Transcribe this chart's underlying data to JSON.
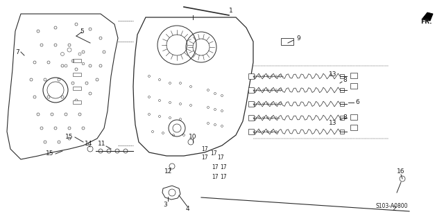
{
  "title": "",
  "background_color": "#ffffff",
  "diagram_code": "S103-A0800",
  "fr_label": "FR.",
  "part_numbers": [
    1,
    2,
    3,
    4,
    5,
    6,
    7,
    8,
    9,
    10,
    11,
    12,
    13,
    14,
    15,
    16,
    17
  ],
  "line_color": "#2a2a2a",
  "text_color": "#1a1a1a",
  "fig_width": 6.4,
  "fig_height": 3.19,
  "dpi": 100
}
